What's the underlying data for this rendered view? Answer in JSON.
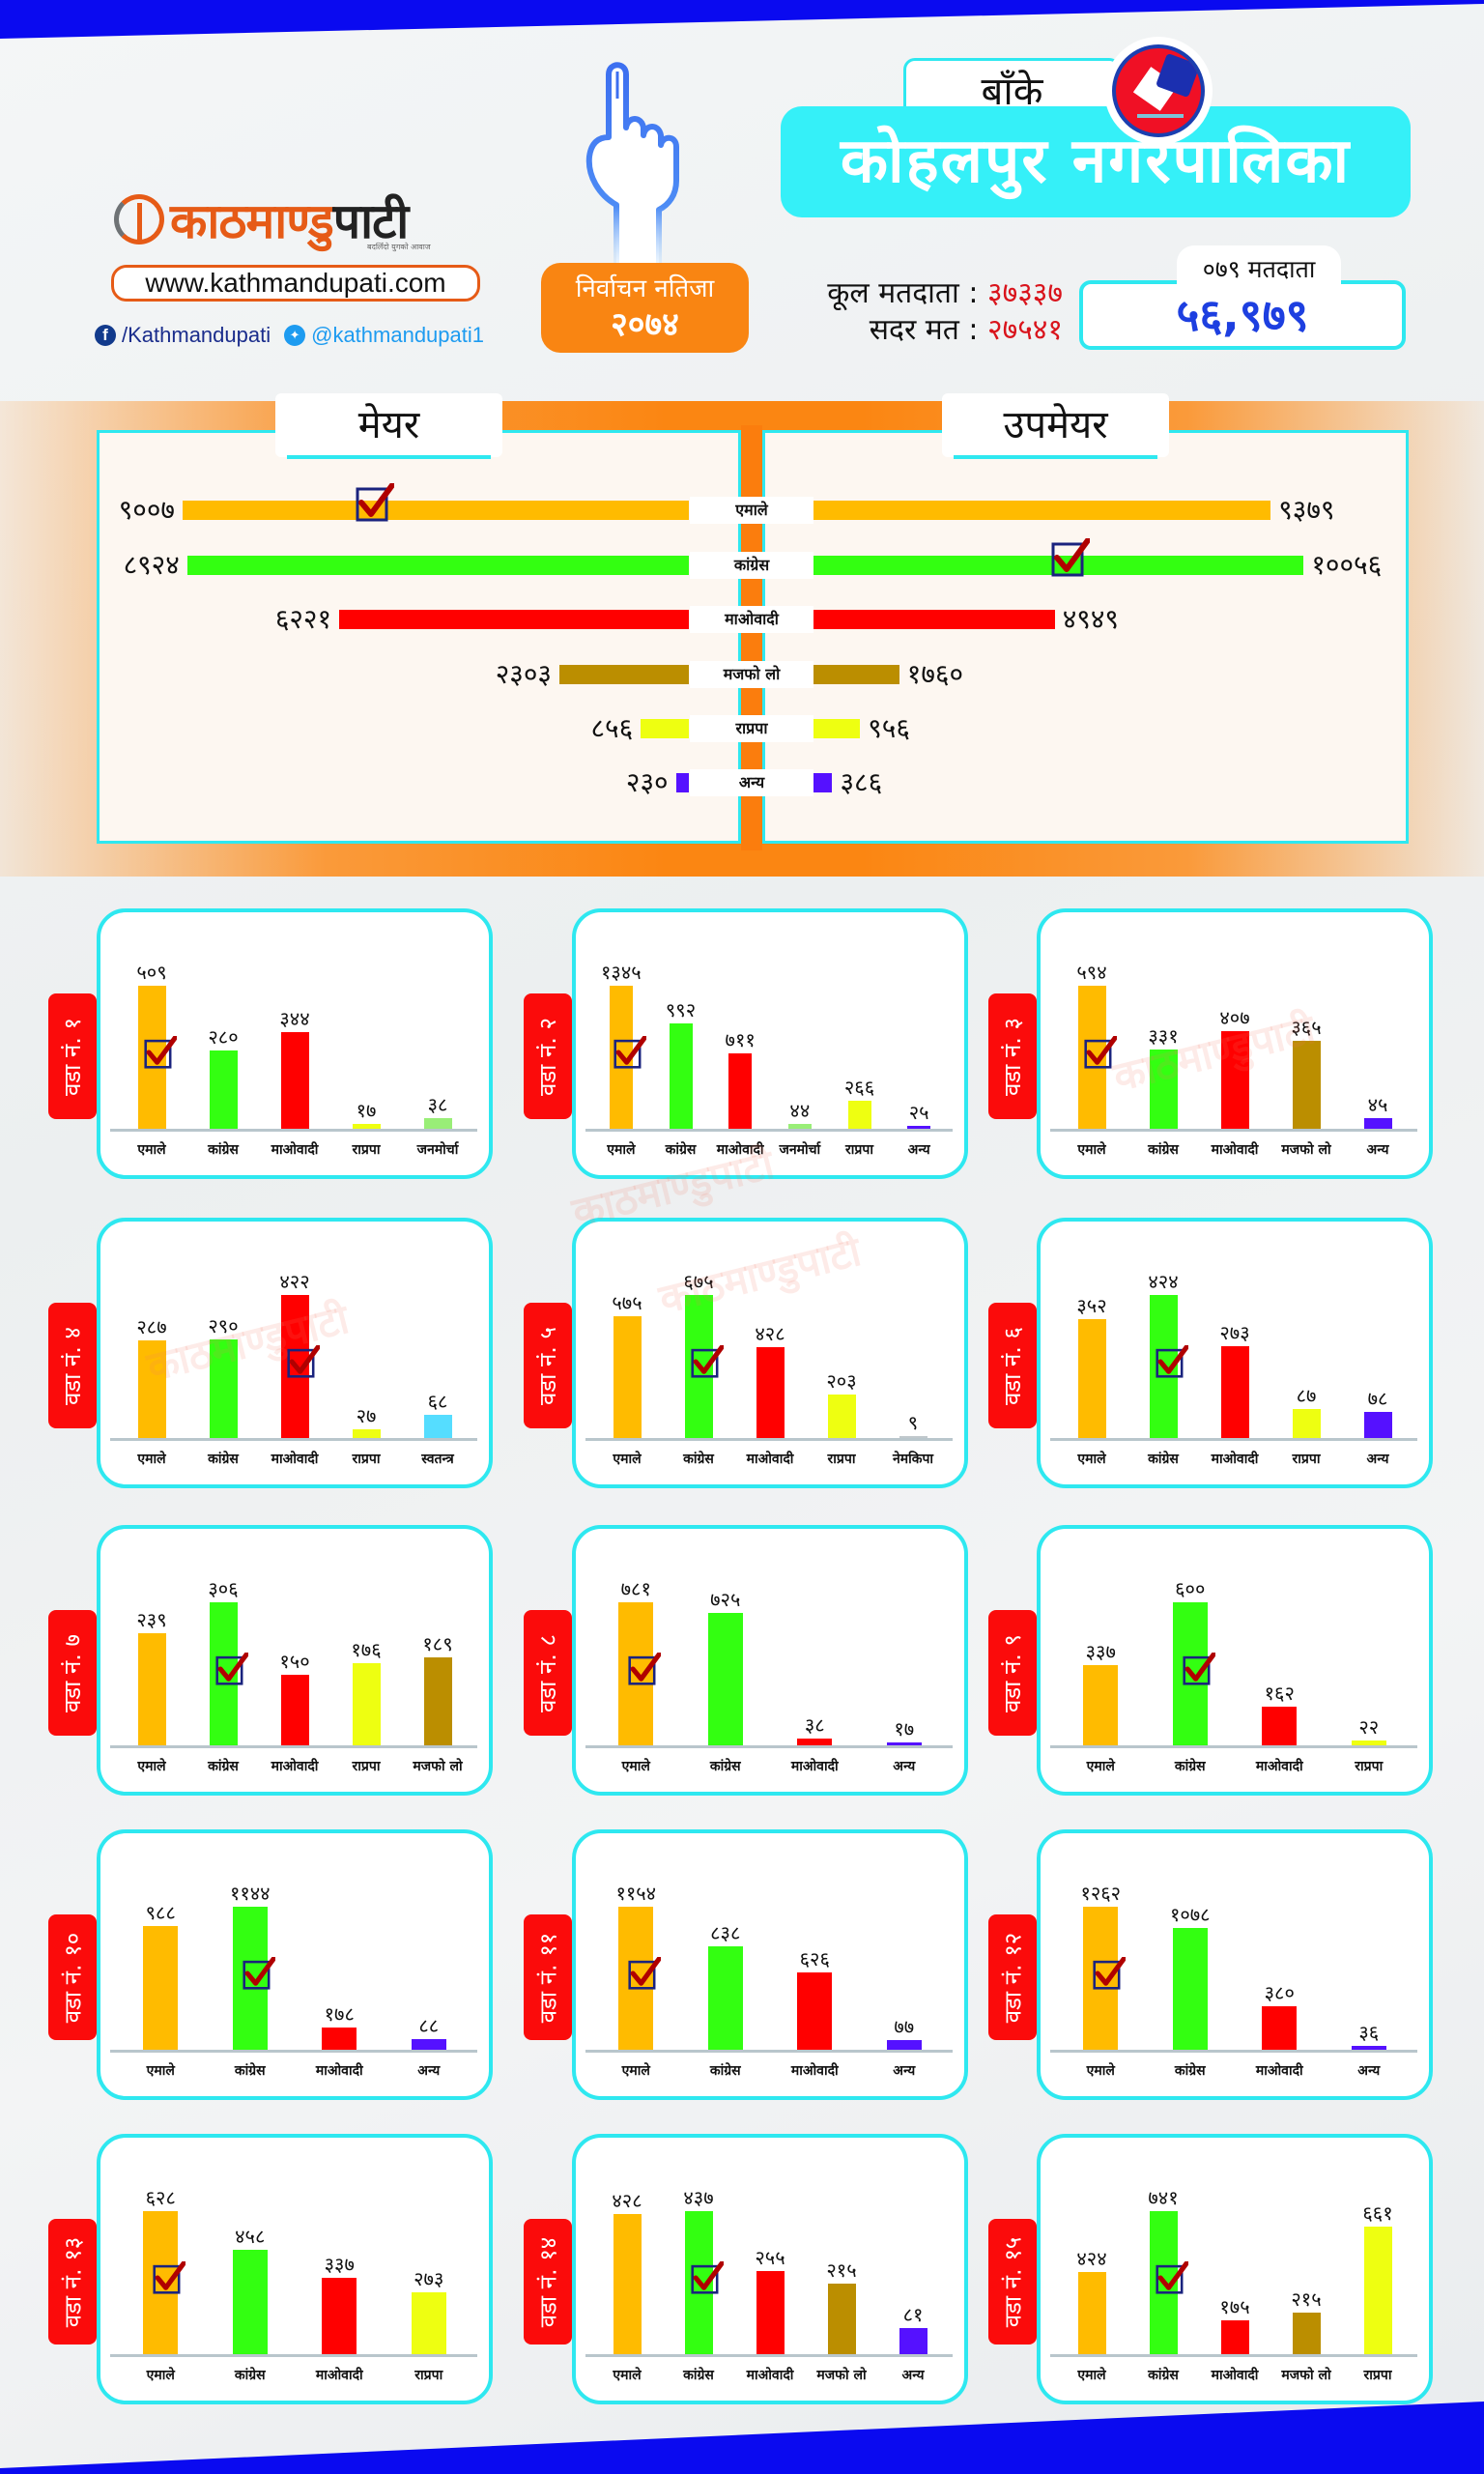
{
  "header": {
    "logo_part1": "काठमाण्डु",
    "logo_part2": "पाटी",
    "logo_tagline": "बदलिँदो युगको आवाज",
    "website": "www.kathmandupati.com",
    "facebook": "/Kathmandupati",
    "twitter": "@kathmandupati1",
    "badge_line1": "निर्वाचन नतिजा",
    "badge_line2": "२०७४",
    "district": "बाँके",
    "municipality": "कोहलपुर नगरपालिका",
    "total_voters_label": "कूल मतदाता :",
    "total_voters": "३७३३७",
    "valid_votes_label": "सदर मत :",
    "valid_votes": "२७५४१",
    "voters_079_label": "०७९ मतदाता",
    "voters_079": "५६,९७९"
  },
  "colors": {
    "एमाले": "#ffbb00",
    "कांग्रेस": "#33ff11",
    "माओवादी": "#ff0000",
    "मजफो लो": "#bb8e00",
    "राप्रपा": "#eeff11",
    "अन्य": "#5511ff",
    "जनमोर्चा": "#99ee77",
    "स्वतन्त्र": "#55ddff",
    "नेमकिपा": "#c0c8cc"
  },
  "chart_data": [
    {
      "type": "bar",
      "title": "मेयर / उपमेयर",
      "orientation": "horizontal-butterfly",
      "categories": [
        "एमाले",
        "कांग्रेस",
        "माओवादी",
        "मजफो लो",
        "राप्रपा",
        "अन्य"
      ],
      "series": [
        {
          "name": "मेयर",
          "values": [
            9007,
            8924,
            6221,
            2303,
            856,
            230
          ],
          "labels": [
            "९००७",
            "८९२४",
            "६२२१",
            "२३०३",
            "८५६",
            "२३०"
          ],
          "winner": "एमाले"
        },
        {
          "name": "उपमेयर",
          "values": [
            9379,
            10056,
            4949,
            1760,
            956,
            386
          ],
          "labels": [
            "९३७९",
            "१००५६",
            "४९४९",
            "१७६०",
            "९५६",
            "३८६"
          ],
          "winner": "कांग्रेस"
        }
      ]
    },
    {
      "type": "bar",
      "title": "वडा नं. १",
      "categories": [
        "एमाले",
        "कांग्रेस",
        "माओवादी",
        "राप्रपा",
        "जनमोर्चा"
      ],
      "values": [
        509,
        280,
        344,
        17,
        38
      ],
      "labels": [
        "५०९",
        "२८०",
        "३४४",
        "१७",
        "३८"
      ],
      "winner": "एमाले"
    },
    {
      "type": "bar",
      "title": "वडा नं. २",
      "categories": [
        "एमाले",
        "कांग्रेस",
        "माओवादी",
        "जनमोर्चा",
        "राप्रपा",
        "अन्य"
      ],
      "values": [
        1345,
        992,
        711,
        44,
        266,
        25
      ],
      "labels": [
        "१३४५",
        "९९२",
        "७११",
        "४४",
        "२६६",
        "२५"
      ],
      "winner": "एमाले"
    },
    {
      "type": "bar",
      "title": "वडा नं. ३",
      "categories": [
        "एमाले",
        "कांग्रेस",
        "माओवादी",
        "मजफो लो",
        "अन्य"
      ],
      "values": [
        594,
        331,
        407,
        365,
        45
      ],
      "labels": [
        "५९४",
        "३३१",
        "४०७",
        "३६५",
        "४५"
      ],
      "winner": "एमाले"
    },
    {
      "type": "bar",
      "title": "वडा नं. ४",
      "categories": [
        "एमाले",
        "कांग्रेस",
        "माओवादी",
        "राप्रपा",
        "स्वतन्त्र"
      ],
      "values": [
        287,
        290,
        422,
        27,
        68
      ],
      "labels": [
        "२८७",
        "२९०",
        "४२२",
        "२७",
        "६८"
      ],
      "winner": "माओवादी"
    },
    {
      "type": "bar",
      "title": "वडा नं. ५",
      "categories": [
        "एमाले",
        "कांग्रेस",
        "माओवादी",
        "राप्रपा",
        "नेमकिपा"
      ],
      "values": [
        575,
        675,
        428,
        203,
        9
      ],
      "labels": [
        "५७५",
        "६७५",
        "४२८",
        "२०३",
        "९"
      ],
      "winner": "कांग्रेस"
    },
    {
      "type": "bar",
      "title": "वडा नं. ६",
      "categories": [
        "एमाले",
        "कांग्रेस",
        "माओवादी",
        "राप्रपा",
        "अन्य"
      ],
      "values": [
        352,
        424,
        273,
        87,
        78
      ],
      "labels": [
        "३५२",
        "४२४",
        "२७३",
        "८७",
        "७८"
      ],
      "winner": "कांग्रेस"
    },
    {
      "type": "bar",
      "title": "वडा नं. ७",
      "categories": [
        "एमाले",
        "कांग्रेस",
        "माओवादी",
        "राप्रपा",
        "मजफो लो"
      ],
      "values": [
        239,
        306,
        150,
        176,
        189
      ],
      "labels": [
        "२३९",
        "३०६",
        "१५०",
        "१७६",
        "१८९"
      ],
      "winner": "कांग्रेस"
    },
    {
      "type": "bar",
      "title": "वडा नं. ८",
      "categories": [
        "एमाले",
        "कांग्रेस",
        "माओवादी",
        "अन्य"
      ],
      "values": [
        781,
        725,
        38,
        17
      ],
      "labels": [
        "७८१",
        "७२५",
        "३८",
        "१७"
      ],
      "winner": "एमाले"
    },
    {
      "type": "bar",
      "title": "वडा नं. ९",
      "categories": [
        "एमाले",
        "कांग्रेस",
        "माओवादी",
        "राप्रपा"
      ],
      "values": [
        337,
        600,
        162,
        22
      ],
      "labels": [
        "३३७",
        "६००",
        "१६२",
        "२२"
      ],
      "winner": "कांग्रेस"
    },
    {
      "type": "bar",
      "title": "वडा नं. १०",
      "categories": [
        "एमाले",
        "कांग्रेस",
        "माओवादी",
        "अन्य"
      ],
      "values": [
        988,
        1144,
        178,
        88
      ],
      "labels": [
        "९८८",
        "११४४",
        "१७८",
        "८८"
      ],
      "winner": "कांग्रेस"
    },
    {
      "type": "bar",
      "title": "वडा नं. ११",
      "categories": [
        "एमाले",
        "कांग्रेस",
        "माओवादी",
        "अन्य"
      ],
      "values": [
        1154,
        838,
        626,
        77
      ],
      "labels": [
        "११५४",
        "८३८",
        "६२६",
        "७७"
      ],
      "winner": "एमाले"
    },
    {
      "type": "bar",
      "title": "वडा नं. १२",
      "categories": [
        "एमाले",
        "कांग्रेस",
        "माओवादी",
        "अन्य"
      ],
      "values": [
        1262,
        1078,
        380,
        36
      ],
      "labels": [
        "१२६२",
        "१०७८",
        "३८०",
        "३६"
      ],
      "winner": "एमाले"
    },
    {
      "type": "bar",
      "title": "वडा नं. १३",
      "categories": [
        "एमाले",
        "कांग्रेस",
        "माओवादी",
        "राप्रपा"
      ],
      "values": [
        628,
        458,
        337,
        273
      ],
      "labels": [
        "६२८",
        "४५८",
        "३३७",
        "२७३"
      ],
      "winner": "एमाले"
    },
    {
      "type": "bar",
      "title": "वडा नं. १४",
      "categories": [
        "एमाले",
        "कांग्रेस",
        "माओवादी",
        "मजफो लो",
        "अन्य"
      ],
      "values": [
        428,
        437,
        255,
        215,
        81
      ],
      "labels": [
        "४२८",
        "४३७",
        "२५५",
        "२१५",
        "८१"
      ],
      "winner": "कांग्रेस"
    },
    {
      "type": "bar",
      "title": "वडा नं. १५",
      "categories": [
        "एमाले",
        "कांग्रेस",
        "माओवादी",
        "मजफो लो",
        "राप्रपा"
      ],
      "values": [
        424,
        741,
        175,
        215,
        661
      ],
      "labels": [
        "४२४",
        "७४१",
        "१७५",
        "२१५",
        "६६१"
      ],
      "winner": "कांग्रेस"
    }
  ],
  "watermark": "काठमाण्डुपाटी"
}
